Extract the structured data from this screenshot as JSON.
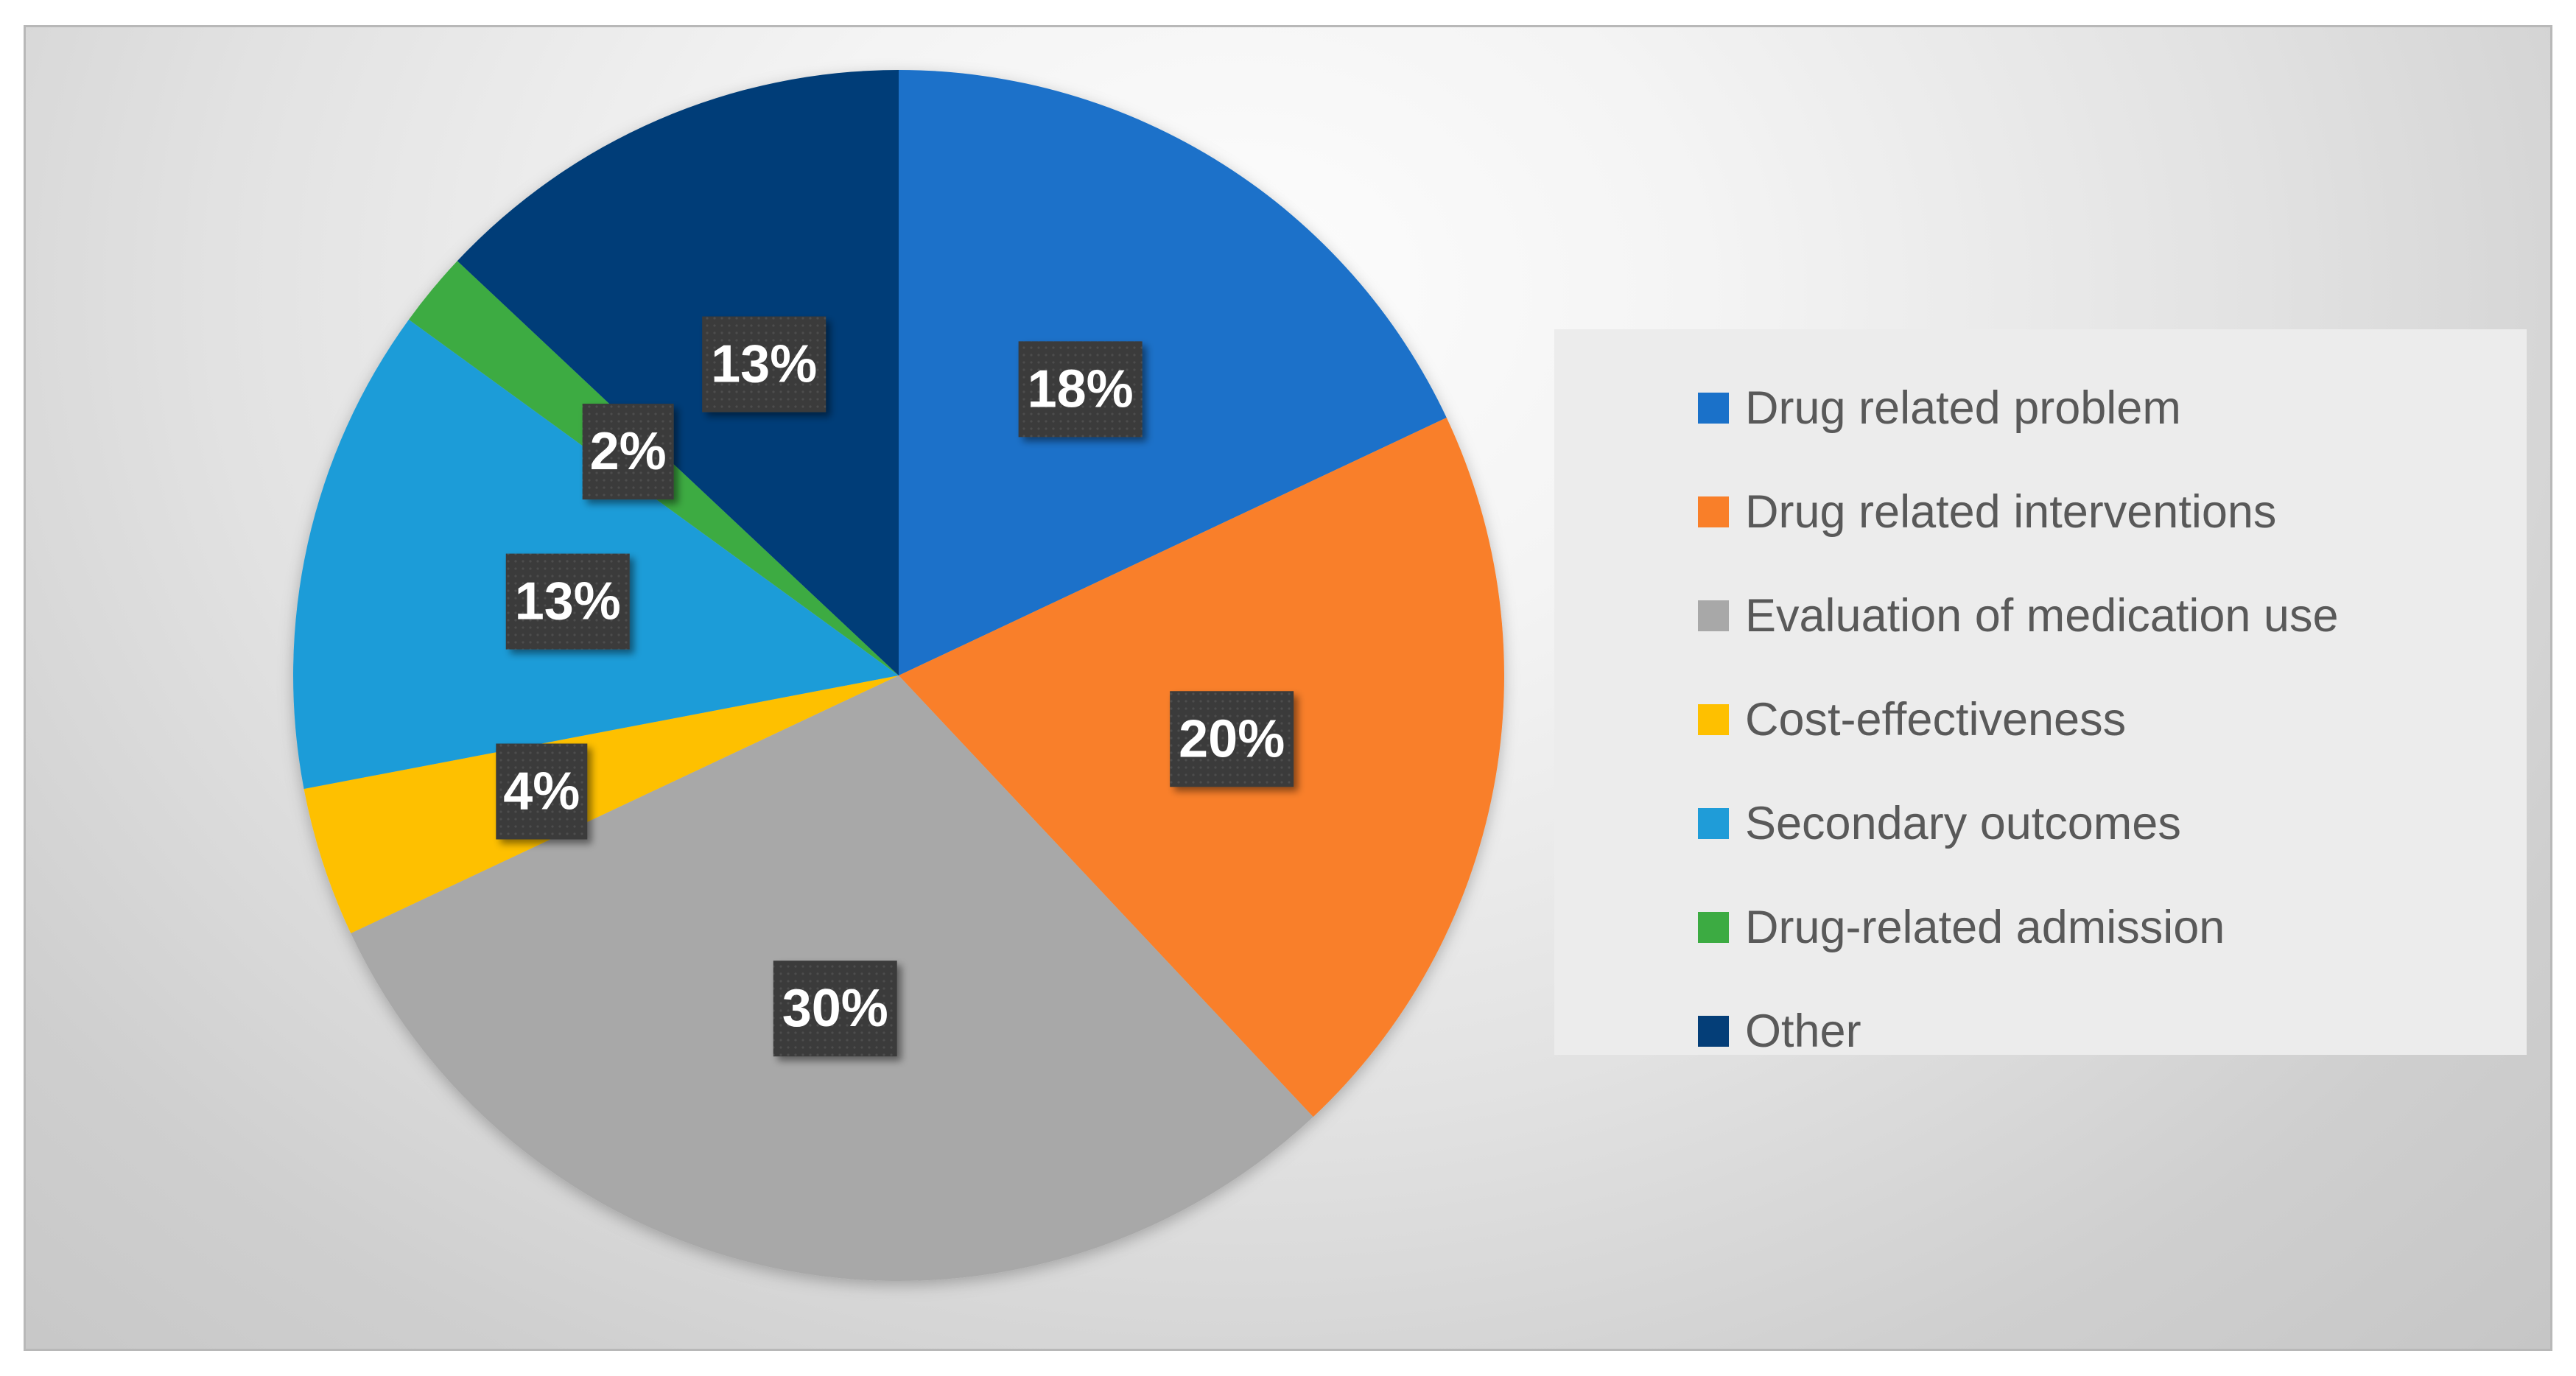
{
  "chart_data": {
    "type": "pie",
    "title": "",
    "start_angle_deg": 0,
    "direction": "clockwise",
    "series": [
      {
        "name": "Drug related problem",
        "value": 18,
        "label": "18%",
        "color": "#1a71c9"
      },
      {
        "name": "Drug related interventions",
        "value": 20,
        "label": "20%",
        "color": "#f97f29"
      },
      {
        "name": "Evaluation of medication use",
        "value": 30,
        "label": "30%",
        "color": "#a8a8a8"
      },
      {
        "name": "Cost-effectiveness",
        "value": 4,
        "label": "4%",
        "color": "#fec000"
      },
      {
        "name": "Secondary outcomes",
        "value": 13,
        "label": "13%",
        "color": "#1f9cd8"
      },
      {
        "name": "Drug-related admission",
        "value": 2,
        "label": "2%",
        "color": "#3cab42"
      },
      {
        "name": "Other",
        "value": 13,
        "label": "13%",
        "color": "#043e78"
      }
    ],
    "legend_position": "right",
    "data_label_style": {
      "background": "#3a3a3a",
      "color": "#ffffff"
    }
  }
}
